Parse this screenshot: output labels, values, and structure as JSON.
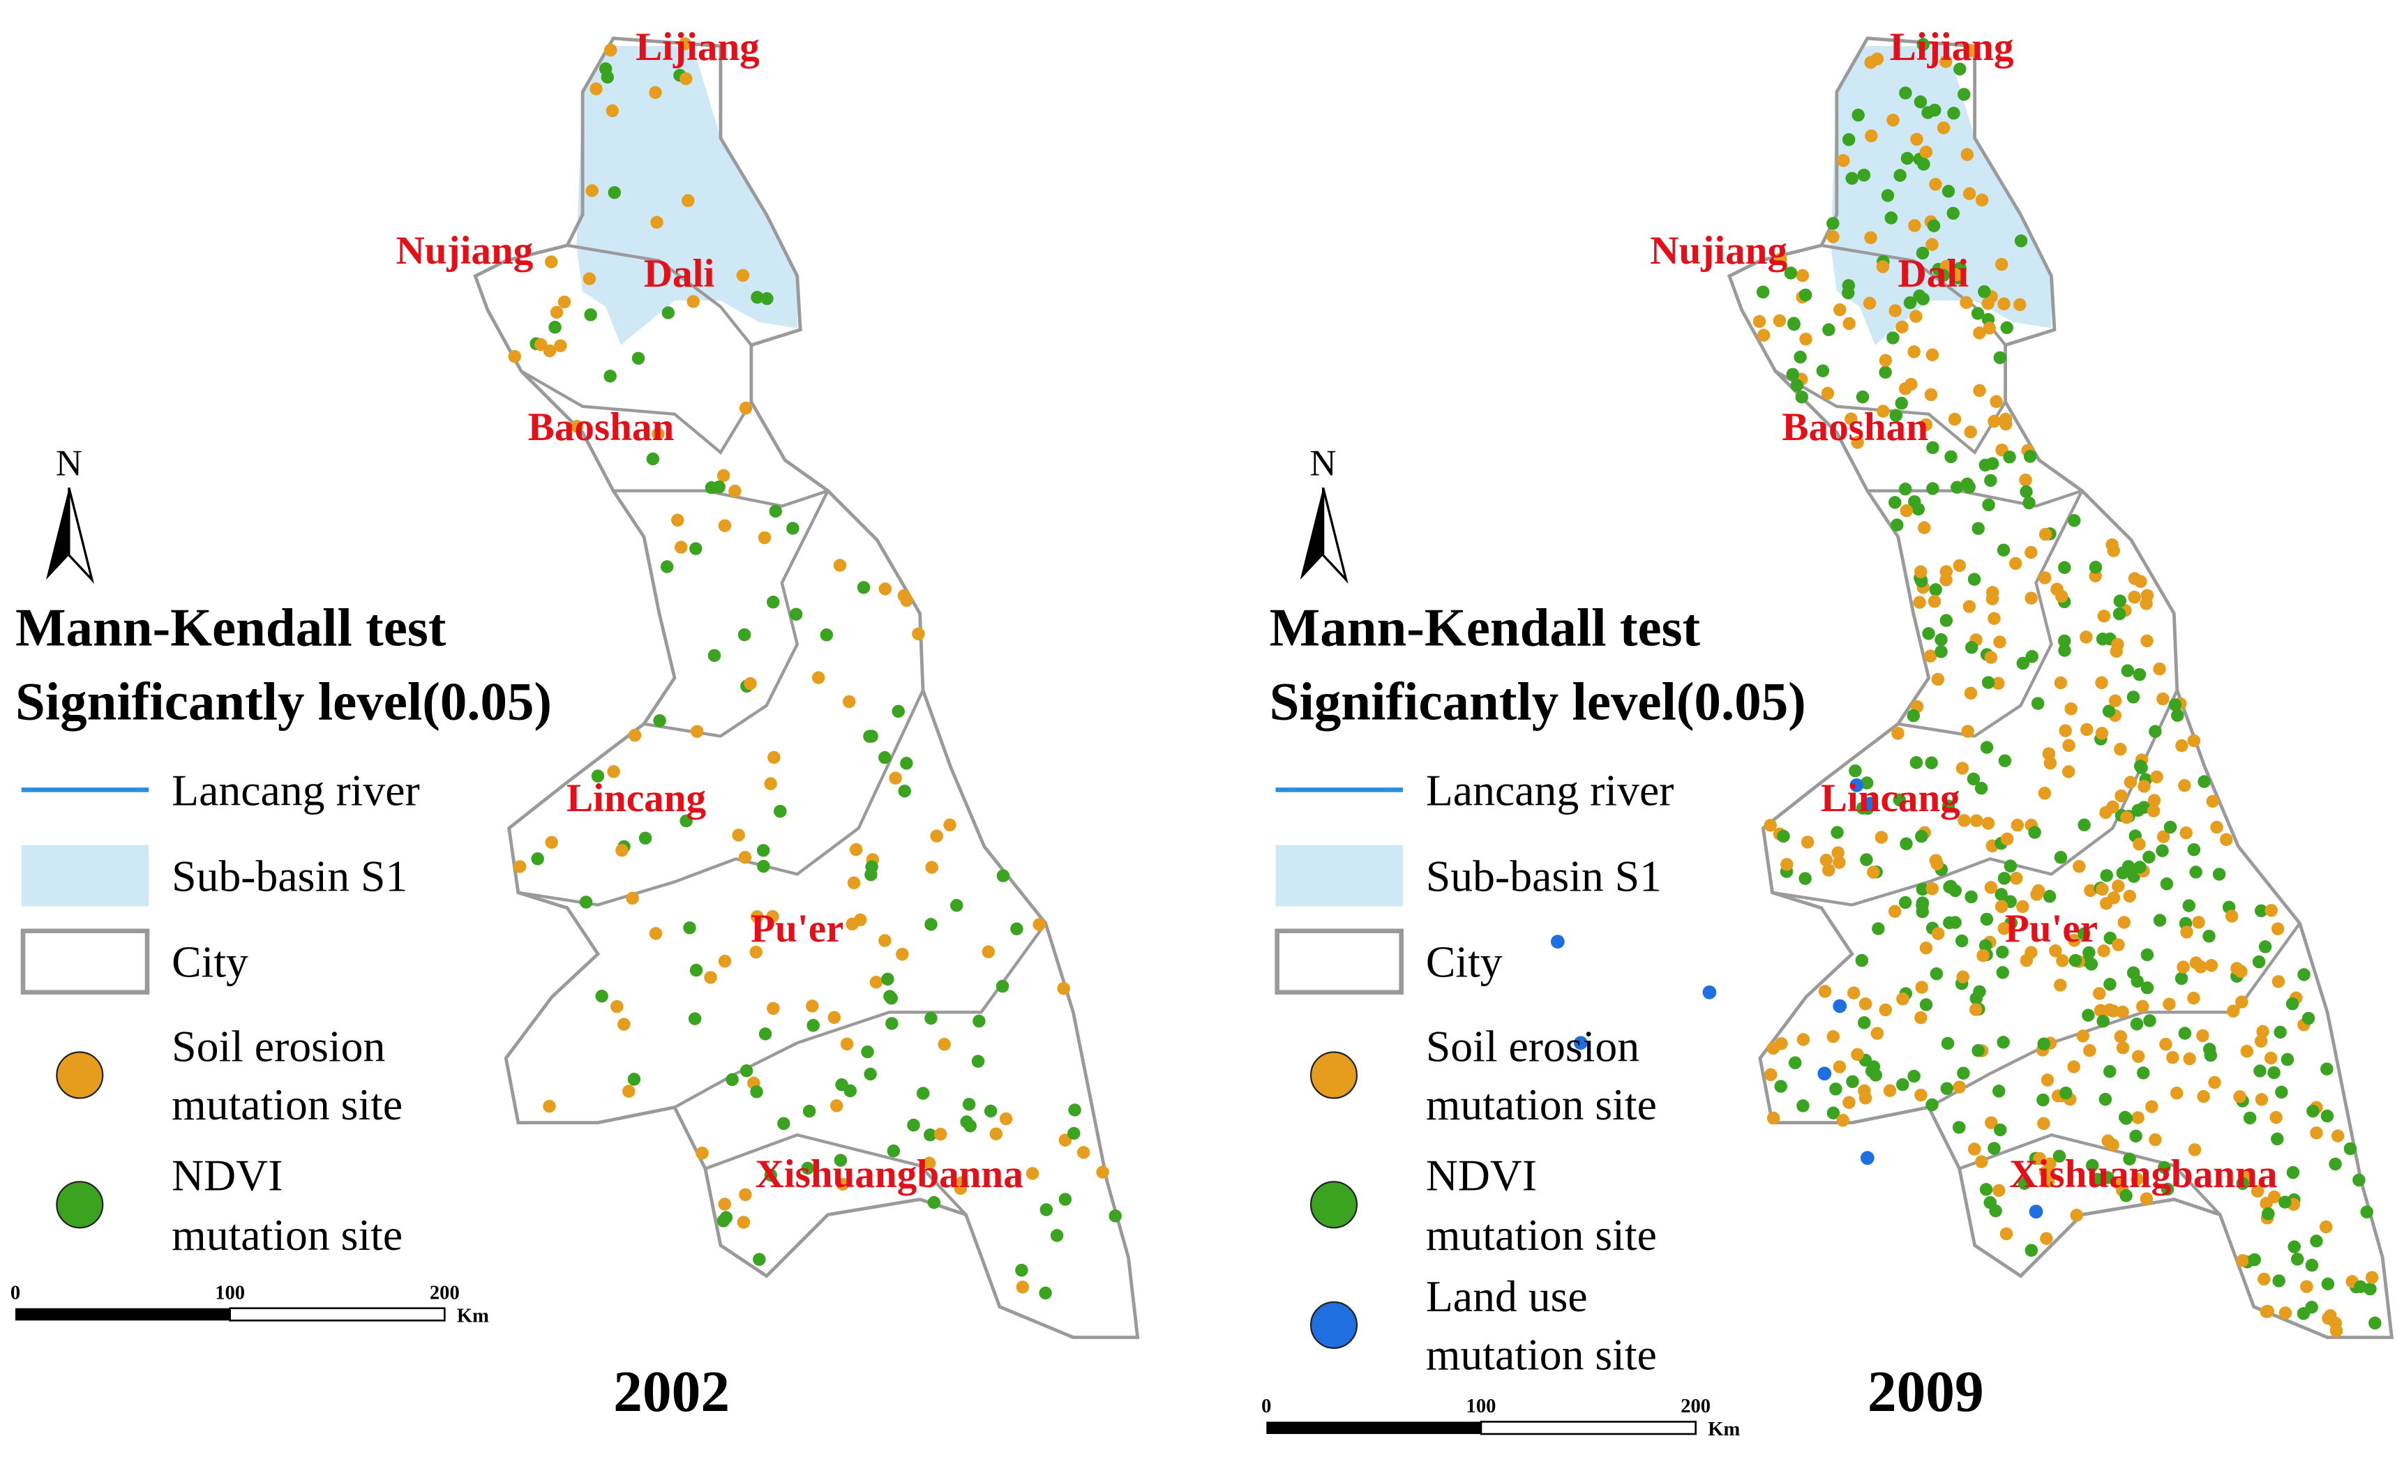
{
  "panels": [
    {
      "year": "2002",
      "cities": [
        "Lijiang",
        "Nujiang",
        "Dali",
        "Baoshan",
        "Lincang",
        "Pu'er",
        "Xishuangbanna"
      ],
      "legend": {
        "north": "N",
        "title": [
          "Mann-Kendall test",
          "Significantly level(0.05)"
        ],
        "items": [
          [
            "Lancang river"
          ],
          [
            "Sub-basin S1"
          ],
          [
            "City"
          ],
          [
            "Soil erosion",
            "mutation site"
          ],
          [
            "NDVI",
            "mutation site"
          ]
        ]
      },
      "scale": {
        "ticks": [
          0,
          100,
          200
        ],
        "unit": "Km"
      }
    },
    {
      "year": "2009",
      "cities": [
        "Lijiang",
        "Nujiang",
        "Dali",
        "Baoshan",
        "Lincang",
        "Pu'er",
        "Xishuangbanna"
      ],
      "legend": {
        "north": "N",
        "title": [
          "Mann-Kendall test",
          "Significantly level(0.05)"
        ],
        "items": [
          [
            "Lancang river"
          ],
          [
            "Sub-basin S1"
          ],
          [
            "City"
          ],
          [
            "Soil erosion",
            "mutation site"
          ],
          [
            "NDVI",
            "mutation site"
          ],
          [
            "Land use",
            "mutation site"
          ]
        ]
      },
      "scale": {
        "ticks": [
          0,
          100,
          200
        ],
        "unit": "Km"
      }
    }
  ]
}
